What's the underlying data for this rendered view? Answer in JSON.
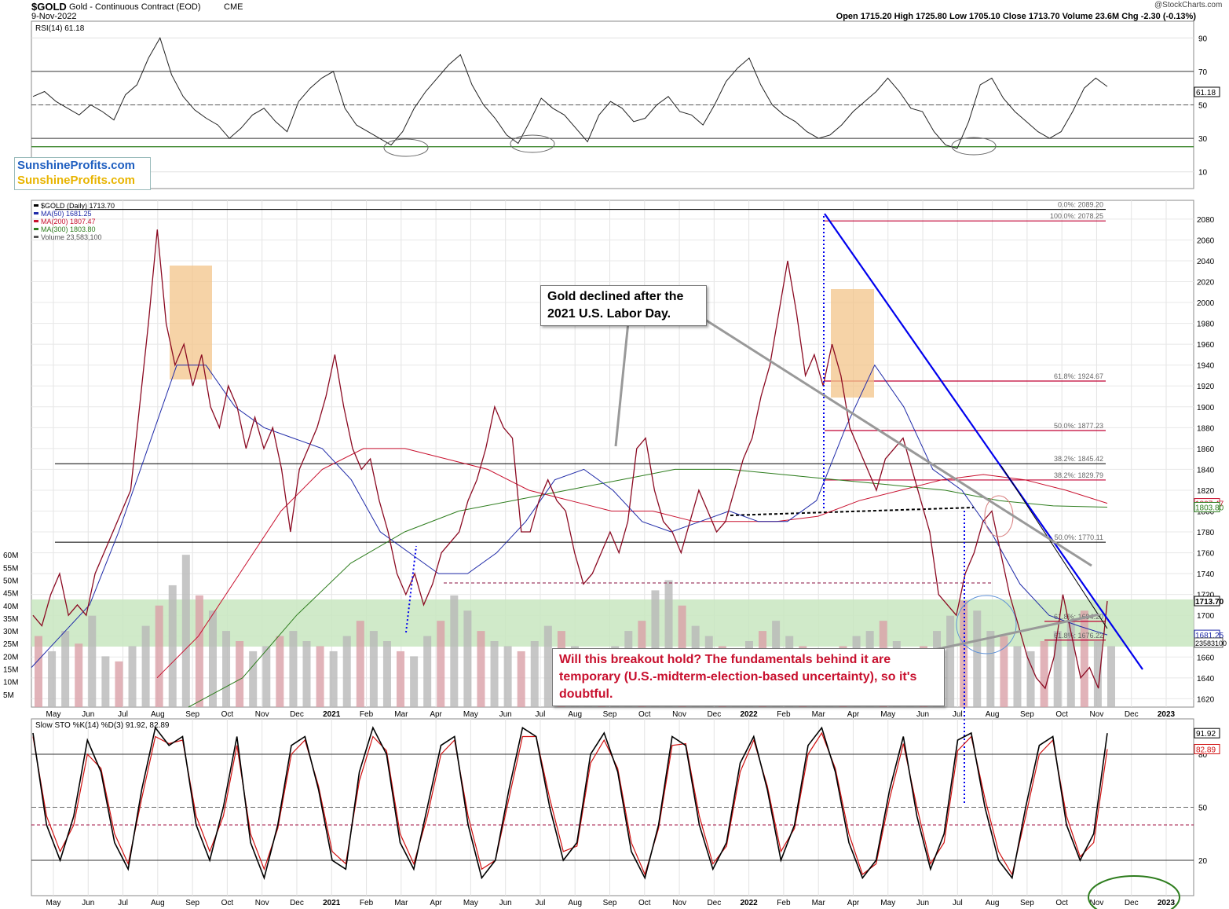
{
  "header": {
    "symbol": "$GOLD",
    "name": "Gold - Continuous Contract (EOD)",
    "exchange": "CME",
    "date": "9-Nov-2022",
    "watermark": "@StockCharts.com",
    "ohlc": "Open 1715.20  High 1725.80  Low 1705.10  Close 1713.70  Volume 23.6M  Chg -2.30 (-0.13%)"
  },
  "brand": {
    "line1": "SunshineProfits.com",
    "line2": "SunshineProfits.com",
    "color1": "#1f5fc0",
    "color2": "#e8b400"
  },
  "colors": {
    "price": "#000000",
    "ma50": "#1f2aa8",
    "ma200": "#c8102e",
    "ma300": "#2e7d1e",
    "trend": "#0000ee",
    "fib": "#c00033",
    "zone": "#c8e6c0",
    "stoch_d": "#d01010"
  },
  "callouts": {
    "labor_day": "Gold declined after the 2021 U.S. Labor Day.",
    "breakout": "Will this breakout hold? The fundamentals behind it are temporary (U.S.-midterm-election-based uncertainty), so it's doubtful."
  },
  "chart_data": [
    {
      "type": "line",
      "title": "RSI(14) 61.18",
      "ylim": [
        0,
        100
      ],
      "yticks": [
        10,
        30,
        50,
        70,
        90
      ],
      "last_value": "61.18",
      "series": [
        {
          "name": "RSI(14)",
          "values": [
            55,
            58,
            52,
            48,
            44,
            50,
            46,
            41,
            56,
            62,
            78,
            90,
            68,
            55,
            47,
            42,
            38,
            30,
            36,
            44,
            48,
            40,
            34,
            52,
            60,
            66,
            70,
            48,
            38,
            34,
            30,
            26,
            34,
            48,
            58,
            66,
            74,
            80,
            62,
            50,
            42,
            32,
            27,
            40,
            54,
            48,
            44,
            36,
            28,
            44,
            52,
            48,
            40,
            42,
            50,
            55,
            46,
            44,
            38,
            50,
            64,
            72,
            78,
            62,
            50,
            44,
            40,
            34,
            30,
            32,
            38,
            46,
            52,
            58,
            66,
            58,
            48,
            46,
            34,
            26,
            24,
            40,
            62,
            66,
            54,
            46,
            40,
            34,
            30,
            34,
            46,
            60,
            66,
            61
          ]
        }
      ]
    },
    {
      "type": "line",
      "title": "$GOLD (Daily) 1713.70",
      "ylabel": "",
      "ylim": [
        1612,
        2098
      ],
      "yticks": [
        1620,
        1640,
        1660,
        1680,
        1700,
        1720,
        1740,
        1760,
        1780,
        1800,
        1820,
        1840,
        1860,
        1880,
        1900,
        1920,
        1940,
        1960,
        1980,
        2000,
        2020,
        2040,
        2060,
        2080
      ],
      "x_labels": [
        "May",
        "Jun",
        "Jul",
        "Aug",
        "Sep",
        "Oct",
        "Nov",
        "Dec",
        "2021",
        "Feb",
        "Mar",
        "Apr",
        "May",
        "Jun",
        "Jul",
        "Aug",
        "Sep",
        "Oct",
        "Nov",
        "Dec",
        "2022",
        "Feb",
        "Mar",
        "Apr",
        "May",
        "Jun",
        "Jul",
        "Aug",
        "Sep",
        "Oct",
        "Nov",
        "Dec",
        "2023"
      ],
      "legend": [
        "$GOLD (Daily) 1713.70",
        "MA(50) 1681.25",
        "MA(200) 1807.47",
        "MA(300) 1803.80",
        "Volume 23,583,100"
      ],
      "series": [
        {
          "name": "$GOLD (Daily)",
          "values": [
            1700,
            1690,
            1720,
            1740,
            1700,
            1710,
            1700,
            1740,
            1760,
            1780,
            1800,
            1820,
            1900,
            1980,
            2070,
            1980,
            1940,
            1960,
            1920,
            1950,
            1900,
            1880,
            1920,
            1900,
            1860,
            1890,
            1860,
            1880,
            1840,
            1780,
            1840,
            1860,
            1880,
            1910,
            1950,
            1900,
            1860,
            1840,
            1850,
            1810,
            1780,
            1740,
            1720,
            1740,
            1710,
            1730,
            1760,
            1770,
            1780,
            1810,
            1830,
            1860,
            1900,
            1880,
            1870,
            1780,
            1780,
            1810,
            1830,
            1810,
            1800,
            1760,
            1730,
            1740,
            1760,
            1780,
            1760,
            1790,
            1860,
            1870,
            1820,
            1790,
            1780,
            1760,
            1790,
            1820,
            1800,
            1780,
            1790,
            1820,
            1850,
            1870,
            1910,
            1940,
            1990,
            2040,
            1990,
            1930,
            1950,
            1920,
            1960,
            1930,
            1880,
            1860,
            1840,
            1820,
            1850,
            1860,
            1870,
            1840,
            1810,
            1780,
            1720,
            1710,
            1700,
            1740,
            1760,
            1790,
            1800,
            1760,
            1720,
            1690,
            1660,
            1640,
            1630,
            1660,
            1720,
            1680,
            1640,
            1650,
            1630,
            1713.7
          ]
        },
        {
          "name": "MA(50)",
          "values": [
            1650,
            1680,
            1710,
            1780,
            1860,
            1940,
            1940,
            1900,
            1880,
            1870,
            1860,
            1830,
            1780,
            1760,
            1740,
            1740,
            1760,
            1790,
            1830,
            1840,
            1820,
            1790,
            1780,
            1790,
            1800,
            1790,
            1790,
            1810,
            1880,
            1940,
            1900,
            1840,
            1820,
            1780,
            1730,
            1700,
            1690,
            1681.25
          ]
        },
        {
          "name": "MA(200)",
          "values": [
            1640,
            1680,
            1740,
            1800,
            1840,
            1860,
            1860,
            1850,
            1840,
            1820,
            1810,
            1800,
            1800,
            1790,
            1790,
            1790,
            1795,
            1810,
            1820,
            1830,
            1835,
            1830,
            1820,
            1807.47
          ]
        },
        {
          "name": "MA(300)",
          "values": [
            1612,
            1640,
            1700,
            1750,
            1780,
            1800,
            1810,
            1820,
            1830,
            1840,
            1840,
            1835,
            1830,
            1825,
            1820,
            1810,
            1805,
            1803.8
          ]
        }
      ],
      "fib_levels": [
        {
          "label": "0.0%: 2089.20",
          "value": 2089.2
        },
        {
          "label": "100.0%: 2078.25",
          "value": 2078.25
        },
        {
          "label": "61.8%: 1924.67",
          "value": 1924.67
        },
        {
          "label": "50.0%: 1877.23",
          "value": 1877.23
        },
        {
          "label": "38.2%: 1845.42",
          "value": 1845.42
        },
        {
          "label": "38.2%: 1829.79",
          "value": 1829.79
        },
        {
          "label": "50.0%: 1770.11",
          "value": 1770.11
        },
        {
          "label": "61.8%: 1694.20",
          "value": 1694.2
        },
        {
          "label": "61.8%: 1676.22",
          "value": 1676.22
        }
      ],
      "right_labels": [
        "1807.47",
        "1803.80",
        "1713.70",
        "1681.25",
        "23583100"
      ]
    },
    {
      "type": "bar",
      "title": "Volume",
      "ylim": [
        0,
        65
      ],
      "yticks": [
        "5M",
        "10M",
        "15M",
        "20M",
        "25M",
        "30M",
        "35M",
        "40M",
        "45M",
        "50M",
        "55M",
        "60M"
      ],
      "values": [
        28,
        22,
        30,
        25,
        36,
        20,
        18,
        24,
        32,
        40,
        48,
        60,
        44,
        38,
        30,
        26,
        22,
        24,
        28,
        30,
        26,
        24,
        22,
        28,
        34,
        30,
        26,
        22,
        20,
        28,
        34,
        44,
        38,
        30,
        26,
        24,
        22,
        26,
        32,
        30,
        24,
        22,
        20,
        24,
        30,
        34,
        46,
        50,
        40,
        32,
        28,
        24,
        22,
        26,
        30,
        34,
        28,
        24,
        22,
        20,
        24,
        28,
        30,
        34,
        26,
        22,
        24,
        30,
        36,
        42,
        38,
        30,
        28,
        24,
        22,
        26,
        30,
        34,
        38,
        26,
        24
      ]
    },
    {
      "type": "line",
      "title": "Slow STO %K(14) %D(3) 91.92, 82.89",
      "ylim": [
        0,
        100
      ],
      "yticks": [
        20,
        50,
        80
      ],
      "right_labels": [
        "91.92",
        "82.89"
      ],
      "series": [
        {
          "name": "%K(14)",
          "values": [
            92,
            40,
            20,
            45,
            88,
            70,
            30,
            15,
            60,
            95,
            85,
            90,
            40,
            20,
            50,
            90,
            30,
            10,
            40,
            85,
            90,
            60,
            20,
            15,
            70,
            95,
            80,
            30,
            15,
            50,
            85,
            90,
            40,
            10,
            20,
            60,
            95,
            90,
            50,
            20,
            30,
            80,
            92,
            70,
            25,
            10,
            40,
            90,
            85,
            40,
            15,
            30,
            75,
            90,
            60,
            20,
            40,
            85,
            95,
            70,
            30,
            10,
            20,
            60,
            90,
            45,
            15,
            35,
            88,
            92,
            50,
            20,
            10,
            50,
            85,
            90,
            40,
            20,
            35,
            91.92
          ]
        },
        {
          "name": "%D(3)",
          "values": [
            90,
            45,
            25,
            40,
            80,
            72,
            35,
            18,
            55,
            90,
            86,
            88,
            45,
            25,
            45,
            85,
            35,
            15,
            38,
            80,
            88,
            62,
            25,
            18,
            65,
            90,
            82,
            35,
            18,
            45,
            80,
            88,
            45,
            15,
            20,
            55,
            90,
            90,
            55,
            25,
            28,
            75,
            88,
            72,
            30,
            12,
            38,
            85,
            86,
            45,
            18,
            28,
            70,
            88,
            62,
            25,
            38,
            80,
            92,
            72,
            35,
            12,
            18,
            55,
            86,
            50,
            18,
            30,
            82,
            90,
            55,
            25,
            12,
            45,
            80,
            88,
            45,
            22,
            30,
            82.89
          ]
        }
      ]
    }
  ]
}
